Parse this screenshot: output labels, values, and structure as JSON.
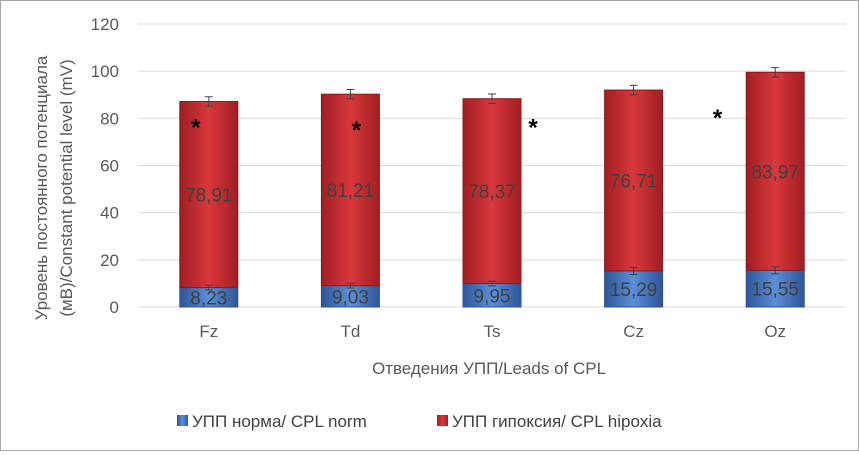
{
  "chart_data": {
    "type": "bar",
    "stacked": true,
    "categories": [
      "Fz",
      "Td",
      "Ts",
      "Cz",
      "Oz"
    ],
    "series": [
      {
        "name": "УПП норма/ CPL norm",
        "color": "#4472c4",
        "values": [
          8.23,
          9.03,
          9.95,
          15.29,
          15.55
        ],
        "labels": [
          "8,23",
          "9,03",
          "9,95",
          "15,29",
          "15,55"
        ],
        "errors": [
          1.0,
          1.0,
          1.0,
          1.5,
          1.5
        ]
      },
      {
        "name": "УПП гипоксия/ CPL hipoxia",
        "color": "#c0282d",
        "values": [
          78.91,
          81.21,
          78.37,
          76.71,
          83.97
        ],
        "labels": [
          "78,91",
          "81,21",
          "78,37",
          "76,71",
          "83,97"
        ],
        "errors": [
          2.0,
          2.0,
          2.0,
          2.0,
          2.0
        ]
      }
    ],
    "significance_marker": "*",
    "y_ticks": [
      0,
      20,
      40,
      60,
      80,
      100,
      120
    ],
    "y_tick_labels": [
      "0",
      "20",
      "40",
      "60",
      "80",
      "100",
      "120"
    ],
    "ylim": [
      0,
      120
    ],
    "ylabel_line1": "Уровень постоянного потенциала",
    "ylabel_line2": "(мВ)/Constant potential level (mV)",
    "xlabel": "Отведения УПП/Leads of CPL",
    "grid": true,
    "legend_position": "bottom"
  }
}
